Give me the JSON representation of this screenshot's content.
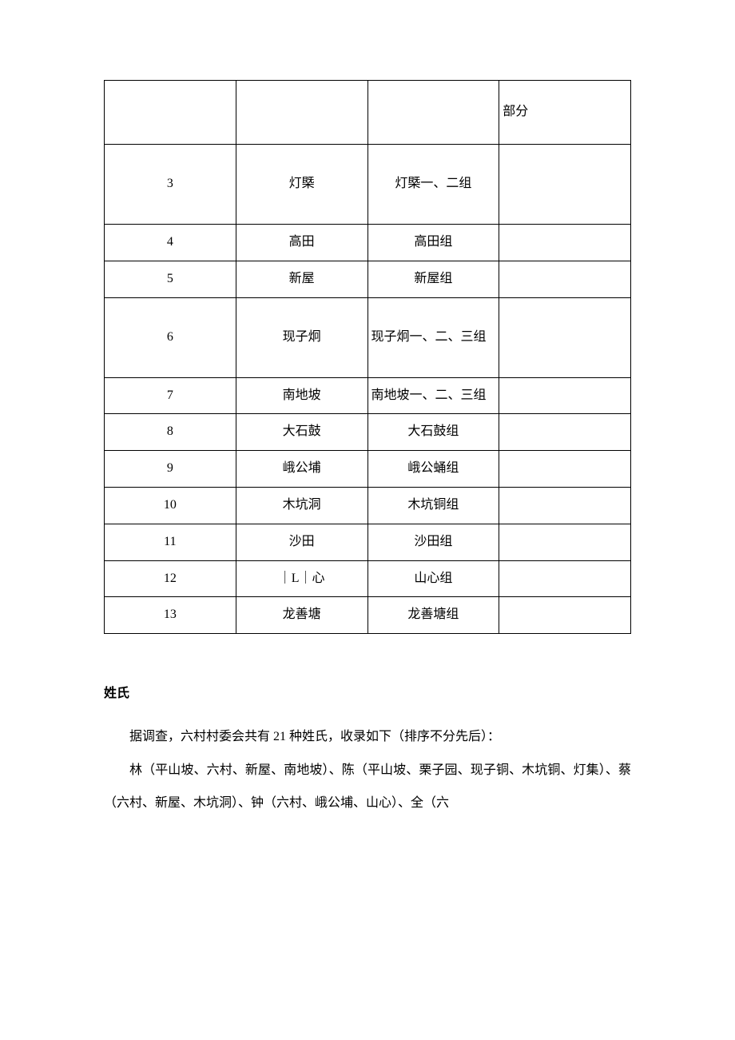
{
  "table": {
    "rows": [
      {
        "num": "",
        "name": "",
        "group": "",
        "note": "部分",
        "tall": true,
        "noteAlign": "left"
      },
      {
        "num": "3",
        "name": "灯槩",
        "group": "灯槩一、二组",
        "note": "",
        "xtall": true
      },
      {
        "num": "4",
        "name": "高田",
        "group": "高田组",
        "note": ""
      },
      {
        "num": "5",
        "name": "新屋",
        "group": "新屋组",
        "note": ""
      },
      {
        "num": "6",
        "name": "现子炯",
        "group": "现子炯一、二、三组",
        "note": "",
        "xtall": true,
        "groupAlign": "left"
      },
      {
        "num": "7",
        "name": "南地坡",
        "group": "南地坡一、二、三组",
        "note": "",
        "groupAlign": "left"
      },
      {
        "num": "8",
        "name": "大石鼓",
        "group": "大石鼓组",
        "note": ""
      },
      {
        "num": "9",
        "name": "峨公埔",
        "group": "峨公蛹组",
        "note": ""
      },
      {
        "num": "10",
        "name": "木坑洞",
        "group": "木坑铜组",
        "note": ""
      },
      {
        "num": "11",
        "name": "沙田",
        "group": "沙田组",
        "note": ""
      },
      {
        "num": "12",
        "name": "｜L｜心",
        "group": "山心组",
        "note": ""
      },
      {
        "num": "13",
        "name": "龙善塘",
        "group": "龙善塘组",
        "note": ""
      }
    ]
  },
  "section": {
    "title": "姓氏",
    "p1": "据调查，六村村委会共有 21 种姓氏，收录如下（排序不分先后）：",
    "p2": "林（平山坡、六村、新屋、南地坡）、陈（平山坡、栗子园、现子铜、木坑铜、灯集）、蔡（六村、新屋、木坑洞）、钟（六村、峨公埔、山心）、全（六"
  },
  "colors": {
    "text": "#000000",
    "border": "#000000",
    "background": "#ffffff"
  },
  "font": {
    "body_family": "SimSun",
    "num_family": "Times New Roman",
    "size_pt": 12
  }
}
